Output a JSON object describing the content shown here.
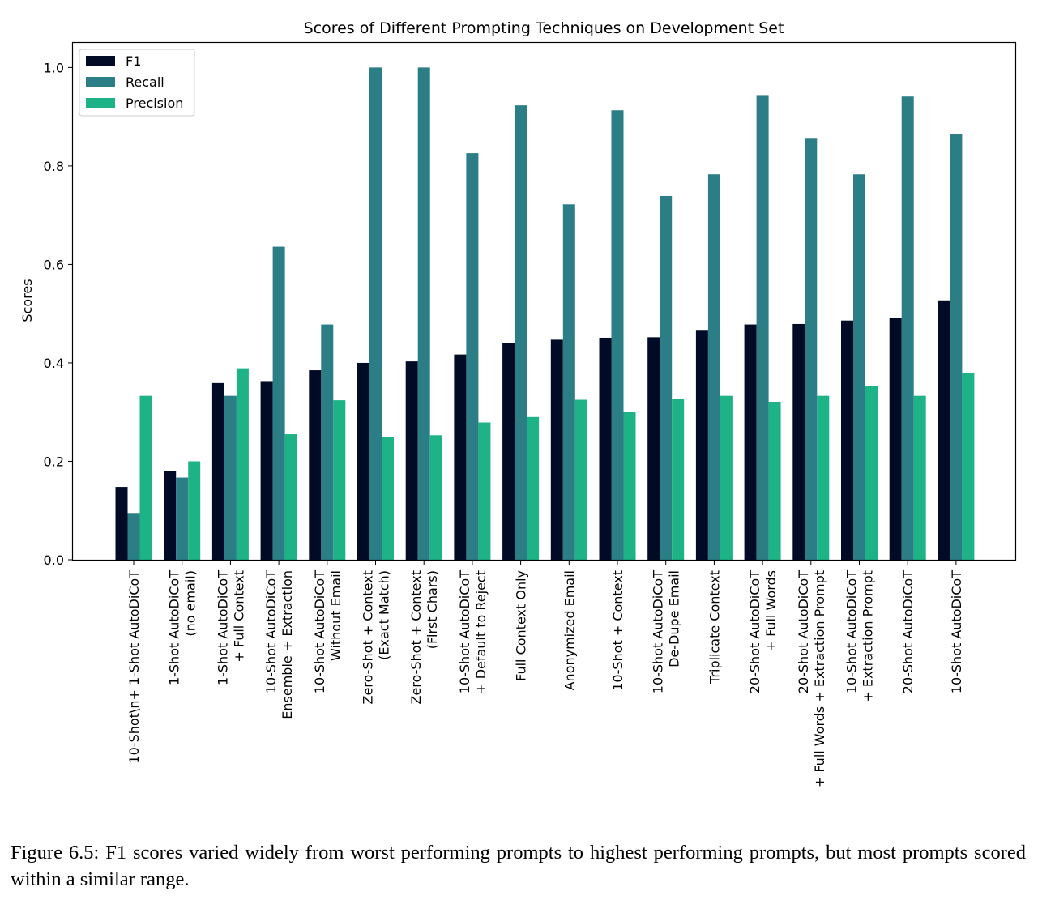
{
  "chart_data": {
    "type": "bar",
    "title": "Scores of Different Prompting Techniques on Development Set",
    "xlabel": "",
    "ylabel": "Scores",
    "ylim": [
      0,
      1.05
    ],
    "yticks": [
      "0.0",
      "0.2",
      "0.4",
      "0.6",
      "0.8",
      "1.0"
    ],
    "legend_position": "top-left",
    "grid": false,
    "categories": [
      [
        "10-Shot\\n+ 1-Shot AutoDiCoT"
      ],
      [
        "1-Shot AutoDiCoT",
        "(no email)"
      ],
      [
        "1-Shot AutoDiCoT",
        "+ Full Context"
      ],
      [
        "10-Shot AutoDiCoT",
        "Ensemble + Extraction"
      ],
      [
        "10-Shot AutoDiCoT",
        "Without Email"
      ],
      [
        "Zero-Shot + Context",
        "(Exact Match)"
      ],
      [
        "Zero-Shot + Context",
        "(First Chars)"
      ],
      [
        "10-Shot AutoDiCoT",
        "+ Default to Reject"
      ],
      [
        "Full Context Only"
      ],
      [
        "Anonymized Email"
      ],
      [
        "10-Shot + Context"
      ],
      [
        "10-Shot AutoDiCoT",
        "De-Dupe Email"
      ],
      [
        "Triplicate Context"
      ],
      [
        "20-Shot AutoDiCoT",
        "+ Full Words"
      ],
      [
        "20-Shot AutoDiCoT",
        "+ Full Words + Extraction Prompt"
      ],
      [
        "10-Shot AutoDiCoT",
        "+ Extraction Prompt"
      ],
      [
        "20-Shot AutoDiCoT"
      ],
      [
        "10-Shot AutoDiCoT"
      ]
    ],
    "series": [
      {
        "name": "F1",
        "color": "#020b26",
        "values": [
          0.148,
          0.181,
          0.359,
          0.363,
          0.385,
          0.4,
          0.403,
          0.417,
          0.44,
          0.447,
          0.451,
          0.452,
          0.467,
          0.478,
          0.479,
          0.486,
          0.492,
          0.527
        ]
      },
      {
        "name": "Recall",
        "color": "#2b7d86",
        "values": [
          0.095,
          0.167,
          0.333,
          0.636,
          0.478,
          1.0,
          1.0,
          0.826,
          0.923,
          0.722,
          0.913,
          0.739,
          0.783,
          0.944,
          0.857,
          0.783,
          0.941,
          0.864
        ]
      },
      {
        "name": "Precision",
        "color": "#1db386",
        "values": [
          0.333,
          0.2,
          0.389,
          0.255,
          0.324,
          0.25,
          0.253,
          0.279,
          0.29,
          0.325,
          0.3,
          0.327,
          0.333,
          0.321,
          0.333,
          0.353,
          0.333,
          0.38
        ]
      }
    ]
  },
  "caption": "Figure 6.5: F1 scores varied widely from worst performing prompts to highest performing prompts, but most prompts scored within a similar range."
}
